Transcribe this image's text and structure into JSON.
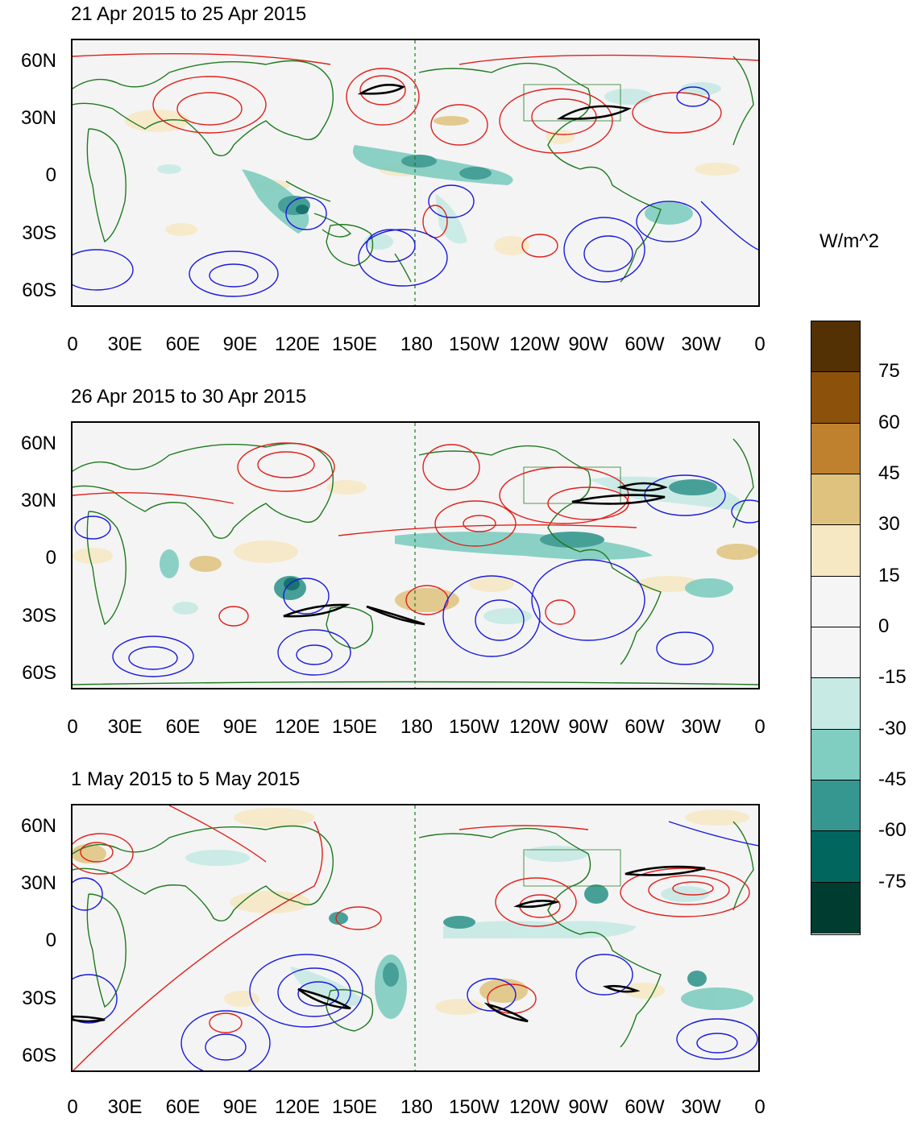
{
  "panels": [
    {
      "title": "21 Apr 2015 to 25 Apr 2015",
      "lat_labels": [
        "60N",
        "30N",
        "0",
        "30S",
        "60S"
      ],
      "lon_labels": [
        "0",
        "30E",
        "60E",
        "90E",
        "120E",
        "150E",
        "180",
        "150W",
        "120W",
        "90W",
        "60W",
        "30W",
        "0"
      ]
    },
    {
      "title": "26 Apr 2015 to 30 Apr 2015",
      "lat_labels": [
        "60N",
        "30N",
        "0",
        "30S",
        "60S"
      ],
      "lon_labels": [
        "0",
        "30E",
        "60E",
        "90E",
        "120E",
        "150E",
        "180",
        "150W",
        "120W",
        "90W",
        "60W",
        "30W",
        "0"
      ]
    },
    {
      "title": "1 May 2015 to 5 May 2015",
      "lat_labels": [
        "60N",
        "30N",
        "0",
        "30S",
        "60S"
      ],
      "lon_labels": [
        "0",
        "30E",
        "60E",
        "90E",
        "120E",
        "150E",
        "180",
        "150W",
        "120W",
        "90W",
        "60W",
        "30W",
        "0"
      ]
    }
  ],
  "colorbar": {
    "title": "W/m^2",
    "labels": [
      "75",
      "60",
      "45",
      "30",
      "15",
      "0",
      "-15",
      "-30",
      "-45",
      "-60",
      "-75"
    ],
    "colors": [
      "#543005",
      "#8c510a",
      "#bf812d",
      "#dfc27d",
      "#f6e8c3",
      "#f5f5f5",
      "#f5f5f5",
      "#c7eae5",
      "#80cdc1",
      "#35978f",
      "#01665e",
      "#003c30"
    ]
  },
  "colors": {
    "positive_contour": "#e0201b",
    "negative_contour": "#1a1adc",
    "coastline": "#1f7a1f",
    "highlight_contour": "#000000"
  }
}
